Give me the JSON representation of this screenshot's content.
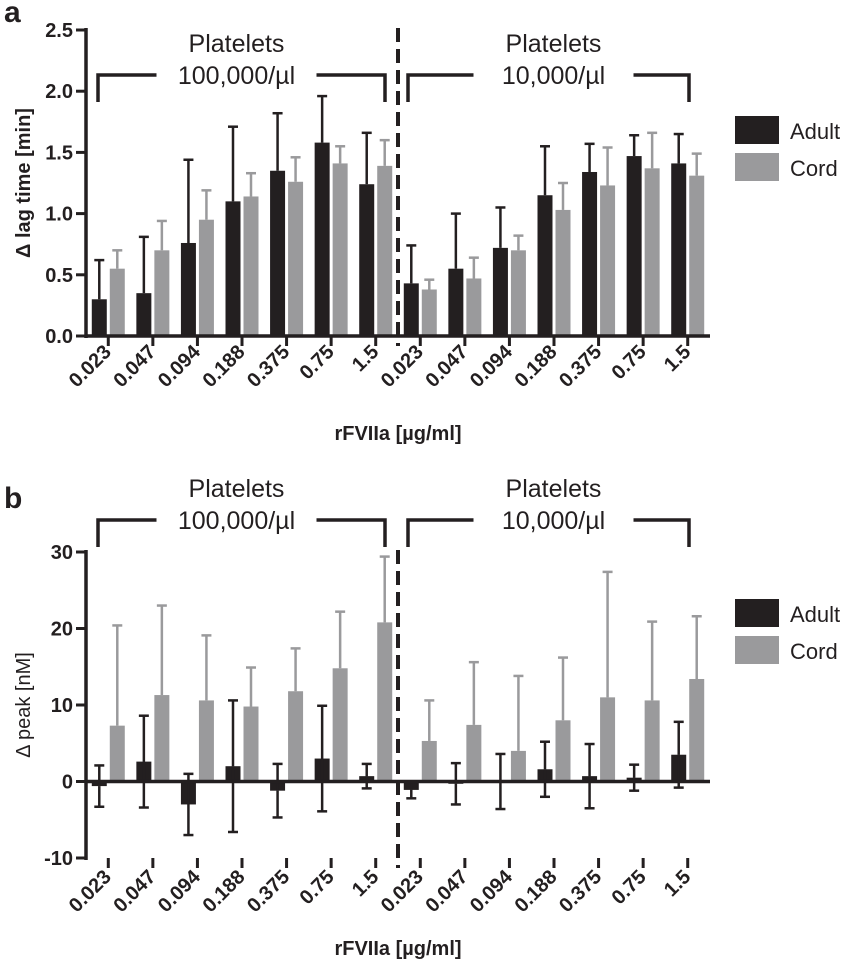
{
  "colors": {
    "adult": "#231f20",
    "cord": "#9a9a9c",
    "axis": "#231f20"
  },
  "chart_data": [
    {
      "panel": "a",
      "type": "bar",
      "ylabel": "Δ lag time [min]",
      "xlabel": "rFVIIa [µg/ml]",
      "ylim": [
        0,
        2.5
      ],
      "yticks": [
        "0.0",
        "0.5",
        "1.0",
        "1.5",
        "2.0",
        "2.5"
      ],
      "categories": [
        "0.023",
        "0.047",
        "0.094",
        "0.188",
        "0.375",
        "0.75",
        "1.5",
        "0.023",
        "0.047",
        "0.094",
        "0.188",
        "0.375",
        "0.75",
        "1.5"
      ],
      "groups": [
        {
          "title": "Platelets",
          "subtitle": "100,000/µl"
        },
        {
          "title": "Platelets",
          "subtitle": "10,000/µl"
        }
      ],
      "legend": [
        "Adult",
        "Cord"
      ],
      "series": [
        {
          "name": "Adult",
          "values": [
            0.3,
            0.35,
            0.76,
            1.1,
            1.35,
            1.58,
            1.24,
            0.43,
            0.55,
            0.72,
            1.15,
            1.34,
            1.47,
            1.41
          ],
          "errors": [
            0.32,
            0.46,
            0.68,
            0.61,
            0.47,
            0.38,
            0.42,
            0.31,
            0.45,
            0.33,
            0.4,
            0.23,
            0.17,
            0.24
          ]
        },
        {
          "name": "Cord",
          "values": [
            0.55,
            0.7,
            0.95,
            1.14,
            1.26,
            1.41,
            1.39,
            0.38,
            0.47,
            0.7,
            1.03,
            1.23,
            1.37,
            1.31
          ],
          "errors": [
            0.15,
            0.24,
            0.24,
            0.19,
            0.2,
            0.14,
            0.21,
            0.08,
            0.17,
            0.12,
            0.22,
            0.31,
            0.29,
            0.18
          ]
        }
      ]
    },
    {
      "panel": "b",
      "type": "bar",
      "ylabel": "Δ peak [nM]",
      "xlabel": "rFVIIa [µg/ml]",
      "ylim": [
        -10,
        30
      ],
      "yticks": [
        "-10",
        "0",
        "10",
        "20",
        "30"
      ],
      "categories": [
        "0.023",
        "0.047",
        "0.094",
        "0.188",
        "0.375",
        "0.75",
        "1.5",
        "0.023",
        "0.047",
        "0.094",
        "0.188",
        "0.375",
        "0.75",
        "1.5"
      ],
      "groups": [
        {
          "title": "Platelets",
          "subtitle": "100,000/µl"
        },
        {
          "title": "Platelets",
          "subtitle": "10,000/µl"
        }
      ],
      "legend": [
        "Adult",
        "Cord"
      ],
      "series": [
        {
          "name": "Adult",
          "values": [
            -0.6,
            2.6,
            -3.0,
            2.0,
            -1.2,
            3.0,
            0.7,
            -1.1,
            -0.3,
            0.0,
            1.6,
            0.7,
            0.5,
            3.5
          ],
          "errors": [
            2.7,
            6.0,
            4.0,
            8.6,
            3.5,
            6.9,
            1.6,
            1.1,
            2.7,
            3.6,
            3.6,
            4.2,
            1.7,
            4.3
          ]
        },
        {
          "name": "Cord",
          "values": [
            7.3,
            11.3,
            10.6,
            9.8,
            11.8,
            14.8,
            20.8,
            5.3,
            7.4,
            4.0,
            8.0,
            11.0,
            10.6,
            13.4
          ],
          "errors": [
            13.1,
            11.7,
            8.5,
            5.1,
            5.6,
            7.4,
            8.6,
            5.3,
            8.2,
            9.8,
            8.2,
            16.4,
            10.3,
            8.2
          ]
        }
      ]
    }
  ],
  "panel_letters": [
    "a",
    "b"
  ]
}
